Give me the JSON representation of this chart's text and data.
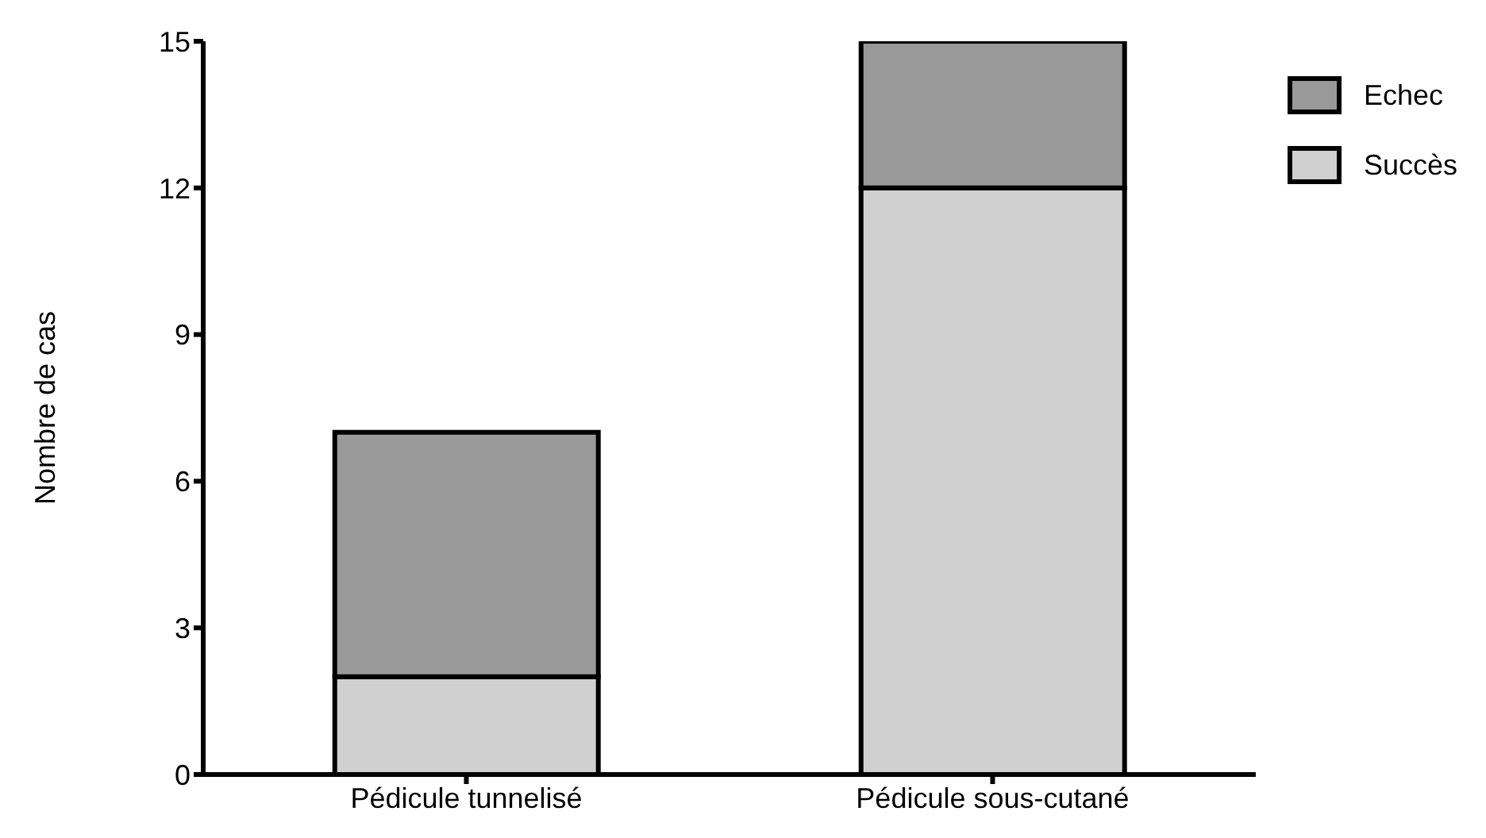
{
  "chart_data": {
    "type": "bar",
    "ylabel": "Nombre de cas",
    "categories": [
      "Pédicule tunnelisé",
      "Pédicule sous-cutané"
    ],
    "stacked": true,
    "series": [
      {
        "name": "Succès",
        "color": "#d0d0d0",
        "values": [
          2,
          12
        ]
      },
      {
        "name": "Echec",
        "color": "#999999",
        "values": [
          5,
          3
        ]
      }
    ],
    "ylim": [
      0,
      15
    ],
    "yticks": [
      0,
      3,
      6,
      9,
      12,
      15
    ],
    "grid": false,
    "legend": "top right"
  }
}
